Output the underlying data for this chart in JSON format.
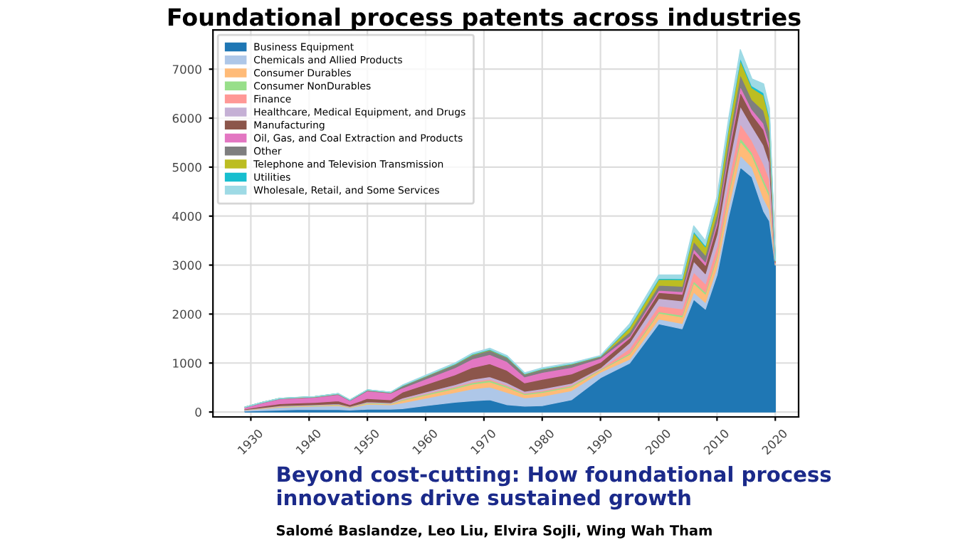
{
  "chart_data": {
    "type": "area",
    "stacked": true,
    "title": "Foundational process patents across industries",
    "annotations": [
      "Beyond cost-cutting: How foundational process innovations drive sustained growth",
      "Salomé Baslandze, Leo Liu, Elvira Sojli, Wing Wah Tham"
    ],
    "x": [
      1929,
      1932,
      1935,
      1938,
      1941,
      1945,
      1947,
      1950,
      1954,
      1956,
      1960,
      1965,
      1968,
      1971,
      1974,
      1977,
      1980,
      1985,
      1990,
      1995,
      2000,
      2004,
      2006,
      2008,
      2010,
      2012,
      2014,
      2016,
      2018,
      2019,
      2020
    ],
    "xlim": [
      1923.5,
      2024
    ],
    "xticks": [
      1930,
      1940,
      1950,
      1960,
      1970,
      1980,
      1990,
      2000,
      2010,
      2020
    ],
    "ylim": [
      -100,
      7800
    ],
    "yticks": [
      0,
      1000,
      2000,
      3000,
      4000,
      5000,
      6000,
      7000
    ],
    "grid": true,
    "legend": "top left",
    "series": [
      {
        "name": "Business Equipment",
        "color": "#1f77b4",
        "values": [
          20,
          30,
          40,
          50,
          50,
          50,
          40,
          60,
          60,
          70,
          130,
          200,
          230,
          250,
          150,
          120,
          130,
          250,
          700,
          1000,
          1800,
          1700,
          2300,
          2100,
          2800,
          4000,
          5000,
          4800,
          4100,
          3900,
          3000
        ]
      },
      {
        "name": "Chemicals and Allied Products",
        "color": "#aec7e8",
        "values": [
          20,
          40,
          60,
          60,
          70,
          80,
          50,
          100,
          90,
          120,
          155,
          200,
          243,
          263,
          250,
          170,
          193,
          188,
          113,
          80,
          100,
          110,
          150,
          140,
          160,
          200,
          240,
          200,
          260,
          230,
          10
        ]
      },
      {
        "name": "Consumer Durables",
        "color": "#ffbb78",
        "values": [
          4,
          9,
          12,
          12,
          13,
          16,
          10,
          20,
          17,
          48,
          62,
          80,
          97,
          105,
          100,
          68,
          77,
          75,
          45,
          96,
          120,
          132,
          180,
          168,
          192,
          240,
          288,
          240,
          312,
          276,
          12
        ]
      },
      {
        "name": "Consumer NonDurables",
        "color": "#98df8a",
        "values": [
          2,
          5,
          7,
          8,
          8,
          10,
          6,
          12,
          10,
          14,
          19,
          24,
          29,
          32,
          30,
          20,
          23,
          23,
          14,
          24,
          30,
          33,
          45,
          42,
          48,
          60,
          72,
          60,
          78,
          69,
          3
        ]
      },
      {
        "name": "Finance",
        "color": "#ff9896",
        "values": [
          1,
          2,
          2,
          3,
          3,
          3,
          2,
          4,
          3,
          10,
          12,
          16,
          19,
          21,
          20,
          14,
          15,
          15,
          9,
          96,
          120,
          132,
          180,
          168,
          192,
          240,
          288,
          240,
          312,
          276,
          12
        ]
      },
      {
        "name": "Healthcare, Medical Equipment, and Drugs",
        "color": "#c5b0d5",
        "values": [
          3,
          7,
          10,
          10,
          10,
          13,
          8,
          16,
          14,
          24,
          31,
          40,
          49,
          53,
          50,
          34,
          39,
          38,
          23,
          120,
          150,
          165,
          225,
          210,
          240,
          300,
          360,
          300,
          390,
          345,
          15
        ]
      },
      {
        "name": "Manufacturing",
        "color": "#8c564b",
        "values": [
          14,
          29,
          41,
          43,
          44,
          56,
          36,
          66,
          58,
          120,
          155,
          200,
          243,
          263,
          250,
          170,
          193,
          188,
          113,
          96,
          120,
          132,
          180,
          168,
          192,
          240,
          288,
          240,
          312,
          276,
          12
        ]
      },
      {
        "name": "Oil, Gas, and Coal Extraction and Products",
        "color": "#e377c2",
        "values": [
          32,
          68,
          96,
          100,
          104,
          132,
          84,
          156,
          136,
          86,
          112,
          144,
          175,
          189,
          180,
          122,
          139,
          135,
          81,
          40,
          50,
          55,
          75,
          70,
          80,
          100,
          120,
          100,
          130,
          115,
          5
        ]
      },
      {
        "name": "Other",
        "color": "#7f7f7f",
        "values": [
          2,
          5,
          7,
          8,
          8,
          10,
          6,
          12,
          10,
          38,
          50,
          64,
          78,
          84,
          80,
          54,
          62,
          60,
          36,
          80,
          100,
          110,
          150,
          140,
          160,
          200,
          240,
          200,
          260,
          230,
          10
        ]
      },
      {
        "name": "Telephone and Television Transmission",
        "color": "#bcbd22",
        "values": [
          1,
          2,
          2,
          3,
          3,
          3,
          2,
          4,
          3,
          5,
          6,
          8,
          10,
          11,
          10,
          7,
          8,
          8,
          5,
          96,
          120,
          132,
          180,
          168,
          192,
          240,
          288,
          240,
          312,
          276,
          12
        ]
      },
      {
        "name": "Utilities",
        "color": "#17becf",
        "values": [
          0,
          1,
          1,
          1,
          1,
          2,
          1,
          2,
          2,
          5,
          6,
          8,
          10,
          11,
          10,
          7,
          8,
          8,
          5,
          16,
          20,
          22,
          30,
          28,
          32,
          40,
          48,
          40,
          52,
          46,
          2
        ]
      },
      {
        "name": "Wholesale, Retail, and Some Services",
        "color": "#9edae5",
        "values": [
          0,
          1,
          1,
          1,
          1,
          2,
          1,
          2,
          2,
          10,
          12,
          16,
          19,
          21,
          20,
          14,
          15,
          15,
          9,
          56,
          70,
          77,
          105,
          98,
          112,
          140,
          168,
          140,
          182,
          161,
          7
        ]
      }
    ]
  }
}
